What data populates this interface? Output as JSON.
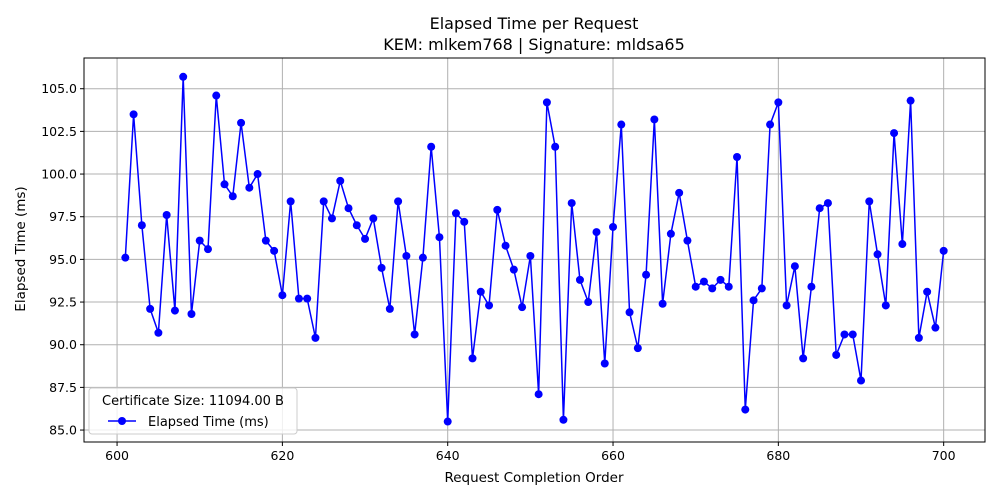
{
  "chart_data": {
    "type": "line",
    "title": "Elapsed Time per Request",
    "subtitle": "KEM: mlkem768 | Signature: mldsa65",
    "xlabel": "Request Completion Order",
    "ylabel": "Elapsed Time (ms)",
    "xlim": [
      596,
      705
    ],
    "ylim": [
      84.3,
      106.8
    ],
    "xticks": [
      600,
      620,
      640,
      660,
      680,
      700
    ],
    "yticks": [
      85.0,
      87.5,
      90.0,
      92.5,
      95.0,
      97.5,
      100.0,
      102.5,
      105.0
    ],
    "xtick_labels": [
      "600",
      "620",
      "640",
      "660",
      "680",
      "700"
    ],
    "ytick_labels": [
      "85.0",
      "87.5",
      "90.0",
      "92.5",
      "95.0",
      "97.5",
      "100.0",
      "102.5",
      "105.0"
    ],
    "grid": true,
    "legend": {
      "title": "Certificate Size: 11094.00 B",
      "location": "bottom-left",
      "entries": [
        "Elapsed Time (ms)"
      ]
    },
    "series": [
      {
        "name": "Elapsed Time (ms)",
        "color": "#0000ff",
        "marker": "circle",
        "x": [
          601,
          602,
          603,
          604,
          605,
          606,
          607,
          608,
          609,
          610,
          611,
          612,
          613,
          614,
          615,
          616,
          617,
          618,
          619,
          620,
          621,
          622,
          623,
          624,
          625,
          626,
          627,
          628,
          629,
          630,
          631,
          632,
          633,
          634,
          635,
          636,
          637,
          638,
          639,
          640,
          641,
          642,
          643,
          644,
          645,
          646,
          647,
          648,
          649,
          650,
          651,
          652,
          653,
          654,
          655,
          656,
          657,
          658,
          659,
          660,
          661,
          662,
          663,
          664,
          665,
          666,
          667,
          668,
          669,
          670,
          671,
          672,
          673,
          674,
          675,
          676,
          677,
          678,
          679,
          680,
          681,
          682,
          683,
          684,
          685,
          686,
          687,
          688,
          689,
          690,
          691,
          692,
          693,
          694,
          695,
          696,
          697,
          698,
          699,
          700
        ],
        "values": [
          95.1,
          103.5,
          97.0,
          92.1,
          90.7,
          97.6,
          92.0,
          105.7,
          91.8,
          96.1,
          95.6,
          104.6,
          99.4,
          98.7,
          103.0,
          99.2,
          100.0,
          96.1,
          95.5,
          92.9,
          98.4,
          92.7,
          92.7,
          90.4,
          98.4,
          97.4,
          99.6,
          98.0,
          97.0,
          96.2,
          97.4,
          94.5,
          92.1,
          98.4,
          95.2,
          90.6,
          95.1,
          101.6,
          96.3,
          85.5,
          97.7,
          97.2,
          89.2,
          93.1,
          92.3,
          97.9,
          95.8,
          94.4,
          92.2,
          95.2,
          87.1,
          104.2,
          101.6,
          85.6,
          98.3,
          93.8,
          92.5,
          96.6,
          88.9,
          96.9,
          102.9,
          91.9,
          89.8,
          94.1,
          103.2,
          92.4,
          96.5,
          98.9,
          96.1,
          93.4,
          93.7,
          93.3,
          93.8,
          93.4,
          101.0,
          86.2,
          92.6,
          93.3,
          102.9,
          104.2,
          92.3,
          94.6,
          89.2,
          93.4,
          98.0,
          98.3,
          89.4,
          90.6,
          90.6,
          87.9,
          98.4,
          95.3,
          92.3,
          102.4,
          95.9,
          104.3,
          90.4,
          93.1,
          91.0,
          95.5
        ]
      }
    ]
  }
}
